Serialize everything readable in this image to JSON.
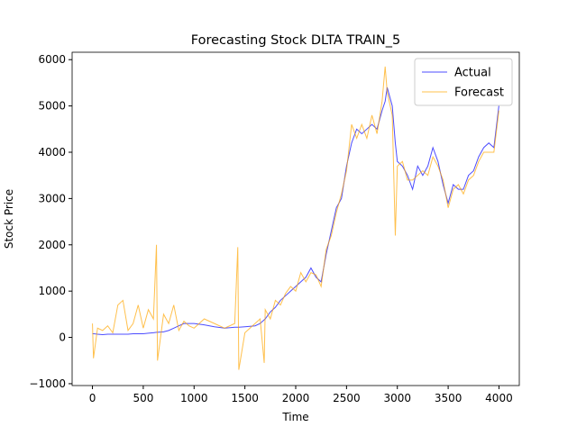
{
  "chart_data": {
    "type": "line",
    "title": "Forecasting Stock DLTA TRAIN_5",
    "x_label": "Time",
    "y_label": "Stock Price",
    "x": [
      0,
      10,
      50,
      100,
      150,
      200,
      250,
      300,
      350,
      400,
      450,
      500,
      550,
      600,
      630,
      640,
      700,
      750,
      800,
      850,
      900,
      950,
      1000,
      1100,
      1200,
      1300,
      1400,
      1430,
      1440,
      1500,
      1600,
      1650,
      1690,
      1700,
      1750,
      1800,
      1850,
      1900,
      1950,
      2000,
      2050,
      2100,
      2150,
      2200,
      2250,
      2300,
      2350,
      2400,
      2450,
      2500,
      2550,
      2600,
      2650,
      2700,
      2750,
      2800,
      2850,
      2880,
      2900,
      2950,
      2980,
      3000,
      3050,
      3100,
      3150,
      3200,
      3250,
      3300,
      3350,
      3400,
      3450,
      3500,
      3550,
      3600,
      3650,
      3700,
      3750,
      3800,
      3850,
      3900,
      3950,
      3999
    ],
    "series": [
      {
        "name": "Actual",
        "color": "#0000ff",
        "values": [
          80,
          80,
          70,
          60,
          70,
          70,
          70,
          70,
          70,
          80,
          80,
          80,
          90,
          100,
          110,
          110,
          120,
          150,
          200,
          250,
          300,
          300,
          300,
          270,
          230,
          200,
          220,
          220,
          220,
          230,
          250,
          300,
          380,
          400,
          550,
          650,
          800,
          900,
          1000,
          1100,
          1200,
          1300,
          1500,
          1300,
          1200,
          1800,
          2300,
          2800,
          3000,
          3700,
          4200,
          4500,
          4400,
          4500,
          4600,
          4500,
          4900,
          5100,
          5400,
          5000,
          4200,
          3800,
          3700,
          3500,
          3200,
          3700,
          3500,
          3700,
          4100,
          3800,
          3300,
          2900,
          3300,
          3200,
          3200,
          3500,
          3600,
          3900,
          4100,
          4200,
          4100,
          5000
        ]
      },
      {
        "name": "Forecast",
        "color": "#ffa500",
        "values": [
          300,
          -450,
          200,
          150,
          250,
          100,
          700,
          800,
          150,
          300,
          700,
          200,
          600,
          400,
          2000,
          -500,
          500,
          300,
          700,
          150,
          350,
          250,
          200,
          400,
          300,
          200,
          300,
          1950,
          -700,
          100,
          300,
          400,
          -550,
          600,
          400,
          800,
          700,
          950,
          1100,
          1000,
          1400,
          1200,
          1400,
          1350,
          1100,
          1900,
          2200,
          2700,
          3100,
          3600,
          4600,
          4300,
          4600,
          4300,
          4800,
          4400,
          5100,
          5850,
          5300,
          4800,
          2200,
          3700,
          3800,
          3400,
          3400,
          3500,
          3600,
          3500,
          3900,
          3700,
          3400,
          2800,
          3200,
          3300,
          3100,
          3400,
          3500,
          3800,
          4000,
          4000,
          4000,
          4900
        ]
      }
    ],
    "xlim": [
      -200,
      4200
    ],
    "ylim": [
      -1040,
      6160
    ],
    "xticks": [
      0,
      500,
      1000,
      1500,
      2000,
      2500,
      3000,
      3500,
      4000
    ],
    "yticks": [
      {
        "value": -1000,
        "label": "−1000"
      },
      0,
      1000,
      2000,
      3000,
      4000,
      5000,
      6000
    ],
    "grid": false,
    "legend": "upper right"
  }
}
